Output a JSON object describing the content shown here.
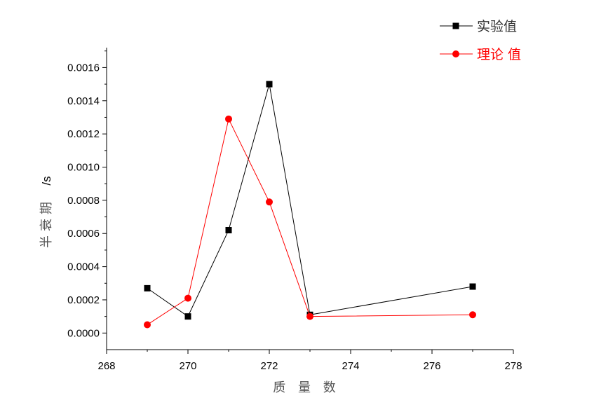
{
  "chart_data": {
    "type": "line",
    "title": "",
    "xlabel": "质 量 数",
    "ylabel": "半衰期",
    "ylabel_unit": "/s",
    "xlim": [
      268,
      278
    ],
    "ylim": [
      -0.0001,
      0.00172
    ],
    "x_ticks": [
      268,
      270,
      272,
      274,
      276,
      278
    ],
    "y_ticks": [
      0.0,
      0.0002,
      0.0004,
      0.0006,
      0.0008,
      0.001,
      0.0012,
      0.0014,
      0.0016
    ],
    "x_tick_labels": [
      "268",
      "270",
      "272",
      "274",
      "276",
      "278"
    ],
    "y_tick_labels": [
      "0.0000",
      "0.0002",
      "0.0004",
      "0.0006",
      "0.0008",
      "0.0010",
      "0.0012",
      "0.0014",
      "0.0016"
    ],
    "grid": false,
    "legend_position": "top-right",
    "series": [
      {
        "name": "实验值",
        "legend_label": "实验值",
        "color": "#000000",
        "marker": "square",
        "x": [
          269,
          270,
          271,
          272,
          273,
          277
        ],
        "y": [
          0.00027,
          0.0001,
          0.00062,
          0.0015,
          0.00011,
          0.00028
        ]
      },
      {
        "name": "理论 值",
        "legend_label": "理论 值",
        "color": "#ff0000",
        "marker": "circle",
        "x": [
          269,
          270,
          271,
          272,
          273,
          277
        ],
        "y": [
          5e-05,
          0.00021,
          0.00129,
          0.00079,
          0.0001,
          0.00011
        ]
      }
    ]
  }
}
